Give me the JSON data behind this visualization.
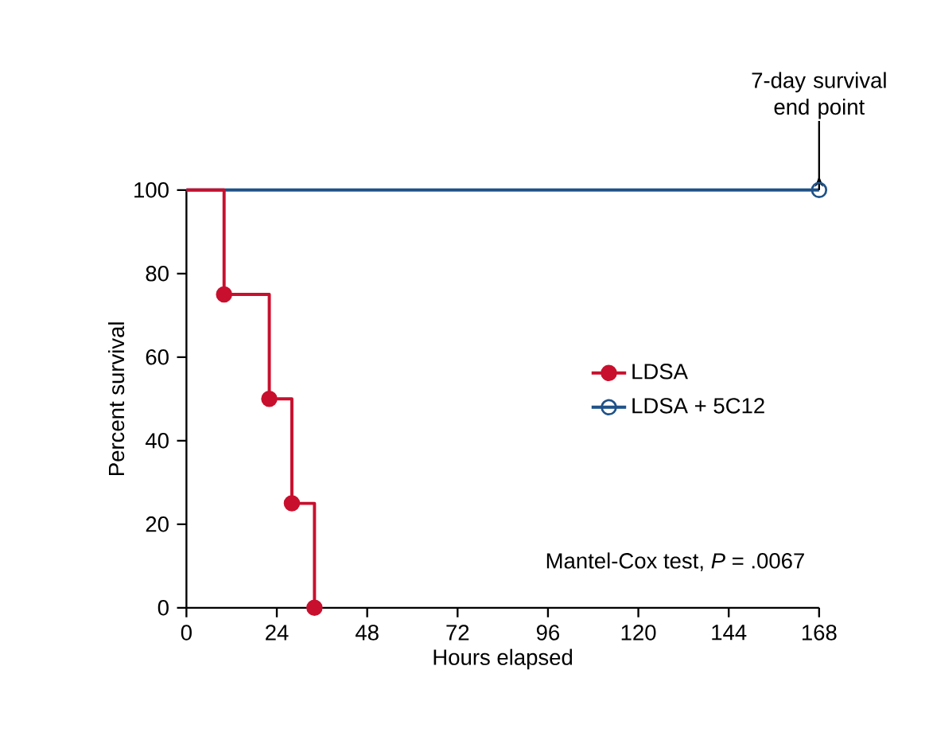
{
  "chart_data": {
    "type": "step",
    "xlabel": "Hours elapsed",
    "ylabel": "Percent survival",
    "xlim": [
      0,
      168
    ],
    "ylim": [
      0,
      100
    ],
    "xticks": [
      0,
      24,
      48,
      72,
      96,
      120,
      144,
      168
    ],
    "yticks": [
      0,
      20,
      40,
      60,
      80,
      100
    ],
    "grid": false,
    "legend": "right",
    "marker": "circle",
    "line_style": "solid",
    "series": [
      {
        "name": "LDSA",
        "color": "#c8102e",
        "x": [
          0,
          10,
          22,
          28,
          34
        ],
        "values": [
          100,
          75,
          50,
          25,
          0
        ]
      },
      {
        "name": "LDSA + 5C12",
        "color": "#1f5288",
        "x": [
          0,
          168
        ],
        "values": [
          100,
          100
        ]
      }
    ],
    "annotations": [
      {
        "text": "7-day survival end point",
        "x": 168,
        "y": 100
      },
      "Mantel-Cox test, *P* = .0067"
    ]
  }
}
